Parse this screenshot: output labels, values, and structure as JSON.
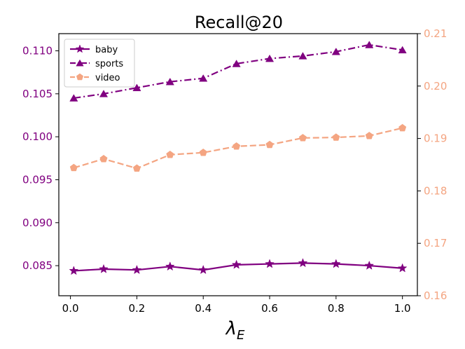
{
  "chart_data": {
    "type": "line",
    "title": "Recall@20",
    "xlabel": "λ",
    "xlabel_sub": "E",
    "x": [
      0.01,
      0.1,
      0.2,
      0.3,
      0.4,
      0.5,
      0.6,
      0.7,
      0.8,
      0.9,
      1.0
    ],
    "xlim": [
      -0.035,
      1.045
    ],
    "xticks": [
      0.0,
      0.2,
      0.4,
      0.6,
      0.8,
      1.0
    ],
    "xtick_labels": [
      "0.0",
      "0.2",
      "0.4",
      "0.6",
      "0.8",
      "1.0"
    ],
    "left_axis": {
      "ylim": [
        0.0815,
        0.112
      ],
      "ticks": [
        0.085,
        0.09,
        0.095,
        0.1,
        0.105,
        0.11
      ],
      "tick_labels": [
        "0.085",
        "0.090",
        "0.095",
        "0.100",
        "0.105",
        "0.110"
      ],
      "color": "#800080"
    },
    "right_axis": {
      "ylim": [
        0.16,
        0.21
      ],
      "ticks": [
        0.16,
        0.17,
        0.18,
        0.19,
        0.2,
        0.21
      ],
      "tick_labels": [
        "0.16",
        "0.17",
        "0.18",
        "0.19",
        "0.20",
        "0.21"
      ],
      "color": "#f4a582"
    },
    "series": [
      {
        "name": "baby",
        "axis": "left",
        "color": "#800080",
        "linestyle": "solid",
        "marker": "star",
        "values": [
          0.0844,
          0.0846,
          0.0845,
          0.0849,
          0.0845,
          0.0851,
          0.0852,
          0.0853,
          0.0852,
          0.085,
          0.0847
        ]
      },
      {
        "name": "sports",
        "axis": "left",
        "color": "#800080",
        "linestyle": "dashdot",
        "marker": "triangle",
        "values": [
          0.1045,
          0.105,
          0.1057,
          0.1064,
          0.1068,
          0.1085,
          0.1091,
          0.1094,
          0.1099,
          0.1107,
          0.1101
        ]
      },
      {
        "name": "video",
        "axis": "right",
        "color": "#f4a582",
        "linestyle": "dashed",
        "marker": "pentagon",
        "values": [
          0.1844,
          0.1861,
          0.1843,
          0.1869,
          0.1873,
          0.1885,
          0.1888,
          0.1901,
          0.1902,
          0.1905,
          0.192
        ]
      }
    ],
    "legend_position": "top-left"
  }
}
